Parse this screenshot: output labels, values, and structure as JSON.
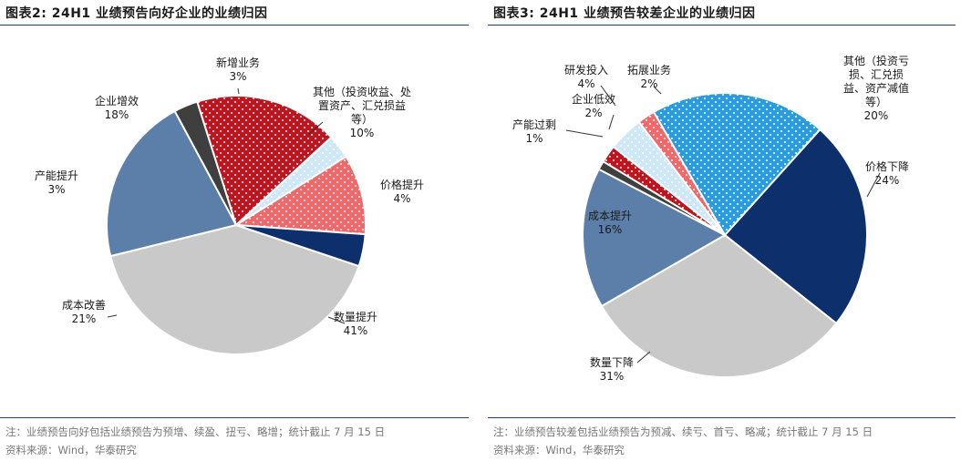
{
  "chart_data": [
    {
      "type": "pie",
      "title": "图表2:  24H1 业绩预告向好企业的业绩归因",
      "unit": "%",
      "slices": [
        {
          "label": [
            "数量提升"
          ],
          "value": 41,
          "display": "41%",
          "color": "#c9c9c9",
          "pattern": "none"
        },
        {
          "label": [
            "成本改善"
          ],
          "value": 21,
          "display": "21%",
          "color": "#5b7fa8",
          "pattern": "none"
        },
        {
          "label": [
            "产能提升"
          ],
          "value": 3,
          "display": "3%",
          "color": "#3f3f3f",
          "pattern": "none"
        },
        {
          "label": [
            "企业增效"
          ],
          "value": 18,
          "display": "18%",
          "color": "#c0141f",
          "pattern": "dots"
        },
        {
          "label": [
            "新增业务"
          ],
          "value": 3,
          "display": "3%",
          "color": "#cfe8f8",
          "pattern": "dots"
        },
        {
          "label": [
            "其他（投资收益、处",
            "置资产、汇兑损益",
            "等）"
          ],
          "value": 10,
          "display": "10%",
          "color": "#f0686a",
          "pattern": "dots"
        },
        {
          "label": [
            "价格提升"
          ],
          "value": 4,
          "display": "4%",
          "color": "#0d2f6b",
          "pattern": "none"
        }
      ],
      "note": "注：业绩预告向好包括业绩预告为预增、续盈、扭亏、略增；统计截止 7 月 15 日",
      "source": "资料来源：Wind，华泰研究"
    },
    {
      "type": "pie",
      "title": "图表3:  24H1 业绩预告较差企业的业绩归因",
      "unit": "%",
      "slices": [
        {
          "label": [
            "价格下降"
          ],
          "value": 24,
          "display": "24%",
          "color": "#0d2f6b",
          "pattern": "none"
        },
        {
          "label": [
            "数量下降"
          ],
          "value": 31,
          "display": "31%",
          "color": "#c9c9c9",
          "pattern": "none"
        },
        {
          "label": [
            "成本提升"
          ],
          "value": 16,
          "display": "16%",
          "color": "#5b7fa8",
          "pattern": "none"
        },
        {
          "label": [
            "产能过剩"
          ],
          "value": 1,
          "display": "1%",
          "color": "#3f3f3f",
          "pattern": "none"
        },
        {
          "label": [
            "企业低效"
          ],
          "value": 2,
          "display": "2%",
          "color": "#c0141f",
          "pattern": "dots"
        },
        {
          "label": [
            "研发投入"
          ],
          "value": 4,
          "display": "4%",
          "color": "#cfe8f8",
          "pattern": "dots"
        },
        {
          "label": [
            "拓展业务"
          ],
          "value": 2,
          "display": "2%",
          "color": "#f0686a",
          "pattern": "dots"
        },
        {
          "label": [
            "其他（投资亏",
            "损、汇兑损",
            "益、资产减值",
            "等）"
          ],
          "value": 20,
          "display": "20%",
          "color": "#2a9bdc",
          "pattern": "dots"
        }
      ],
      "note": "注：业绩预告较差包括业绩预告为预减、续亏、首亏、略减；统计截止 7 月 15 日",
      "source": "资料来源：Wind，华泰研究"
    }
  ]
}
